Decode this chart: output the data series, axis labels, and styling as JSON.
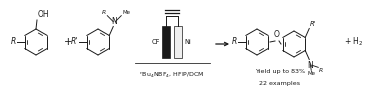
{
  "bg_color": "#ffffff",
  "fig_width": 3.78,
  "fig_height": 0.94,
  "dpi": 100,
  "line_color": "#1a1a1a",
  "line_width": 0.7,
  "font_size": 5.5,
  "small_font_size": 4.8,
  "reagent_text": "$^n$Bu$_4$NBF$_4$, HFIP/DCM",
  "yield_text": "Yield up to 83%",
  "examples_text": "22 examples",
  "h2_text": "+ H$_2$"
}
